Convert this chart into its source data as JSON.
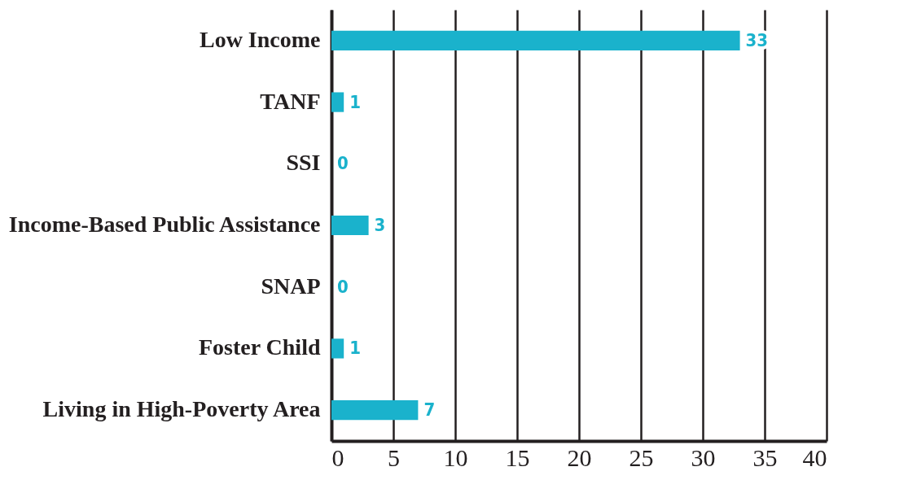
{
  "chart_data": {
    "type": "bar",
    "orientation": "horizontal",
    "categories": [
      "Low Income",
      "TANF",
      "SSI",
      "Income-Based Public Assistance",
      "SNAP",
      "Foster Child",
      "Living in High-Poverty Area"
    ],
    "values": [
      33,
      1,
      0,
      3,
      0,
      1,
      7
    ],
    "color": "#1ab2cc",
    "xlim": [
      0,
      40
    ],
    "xticks": [
      0,
      5,
      10,
      15,
      20,
      25,
      30,
      35,
      40
    ],
    "grid": "x",
    "data_labels": true
  }
}
